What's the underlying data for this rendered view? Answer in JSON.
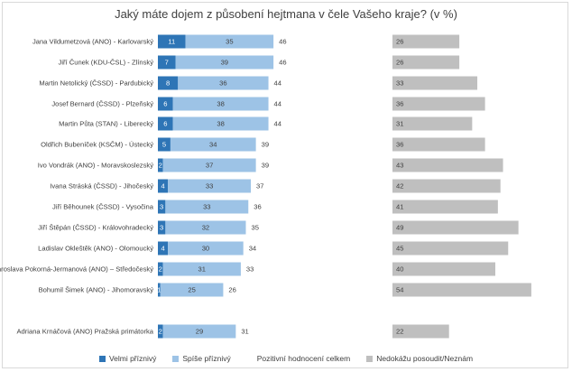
{
  "chart_data": {
    "type": "bar",
    "title": "Jaký máte dojem z působení hejtmana v čele Vašeho kraje? (v %)",
    "categories": [
      "Jana Vildumetzová (ANO) - Karlovarský",
      "Jiří Čunek (KDU-ČSL) - Zlínský",
      "Martin Netolický (ČSSD) - Pardubický",
      "Josef Bernard (ČSSD) - Plzeňský",
      "Martin Půta (STAN) - Liberecký",
      "Oldřich Bubeníček (KSČM) - Ústecký",
      "Ivo Vondrák (ANO) - Moravskoslezský",
      "Ivana Stráská (ČSSD) - Jihočeský",
      "Jiří Běhounek (ČSSD) - Vysočina",
      "Jiří Štěpán (ČSSD) - Královohradecký",
      "Ladislav Okleštěk (ANO) - Olomoucký",
      "Jaroslava Pokorná-Jermanová (ANO) – Středočeský",
      "Bohumil Šimek (ANO) - Jihomoravský",
      "Adriana Krnáčová (ANO) Pražská primátorka"
    ],
    "series": [
      {
        "name": "Velmi příznivý",
        "color": "#2e75b6",
        "values": [
          11,
          7,
          8,
          6,
          6,
          5,
          2,
          4,
          3,
          3,
          4,
          2,
          1,
          2
        ]
      },
      {
        "name": "Spíše příznivý",
        "color": "#9dc3e6",
        "values": [
          35,
          39,
          36,
          38,
          38,
          34,
          37,
          33,
          33,
          32,
          30,
          31,
          25,
          29
        ]
      },
      {
        "name": "Pozitivní hodnocení celkem",
        "color": "#ffffff",
        "values": [
          46,
          46,
          44,
          44,
          44,
          39,
          39,
          37,
          36,
          35,
          34,
          33,
          26,
          31
        ]
      },
      {
        "name": "Nedokážu posoudit/Neznám",
        "color": "#bfbfbf",
        "values": [
          26,
          26,
          33,
          36,
          31,
          36,
          43,
          42,
          41,
          49,
          45,
          40,
          54,
          22
        ]
      }
    ],
    "legend_position": "bottom",
    "grid": false
  }
}
